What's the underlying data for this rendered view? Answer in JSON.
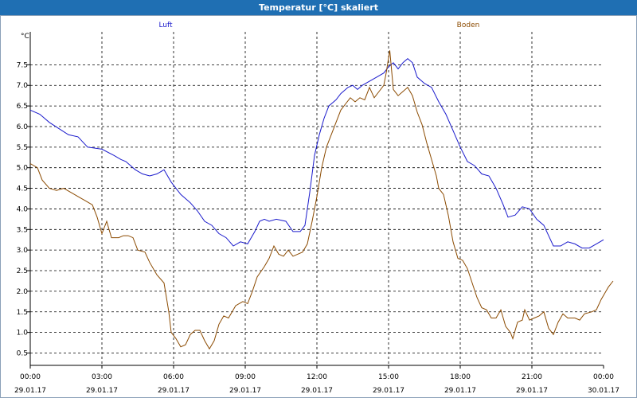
{
  "window": {
    "title": "Temperatur [°C] skaliert"
  },
  "colors": {
    "titlebar": "#1f6fb3",
    "luft": "#1a1acc",
    "boden": "#8b4a00",
    "grid": "#000000"
  },
  "chart_data": {
    "type": "line",
    "ylabel": "°C",
    "ylim": [
      0.2,
      8.3
    ],
    "xlim": [
      0,
      24
    ],
    "yticks": [
      "0.5",
      "1.0",
      "1.5",
      "2.0",
      "2.5",
      "3.0",
      "3.5",
      "4.0",
      "4.5",
      "5.0",
      "5.5",
      "6.0",
      "6.5",
      "7.0",
      "7.5"
    ],
    "xticks": [
      {
        "time": "00:00",
        "date": "29.01.17"
      },
      {
        "time": "03:00",
        "date": "29.01.17"
      },
      {
        "time": "06:00",
        "date": "29.01.17"
      },
      {
        "time": "09:00",
        "date": "29.01.17"
      },
      {
        "time": "12:00",
        "date": "29.01.17"
      },
      {
        "time": "15:00",
        "date": "29.01.17"
      },
      {
        "time": "18:00",
        "date": "29.01.17"
      },
      {
        "time": "21:00",
        "date": "29.01.17"
      },
      {
        "time": "00:00",
        "date": "30.01.17"
      }
    ],
    "series": [
      {
        "name": "Luft",
        "points": [
          [
            0,
            6.4
          ],
          [
            0.4,
            6.3
          ],
          [
            0.8,
            6.1
          ],
          [
            1.2,
            5.95
          ],
          [
            1.6,
            5.8
          ],
          [
            2.0,
            5.75
          ],
          [
            2.4,
            5.5
          ],
          [
            3.0,
            5.45
          ],
          [
            3.5,
            5.3
          ],
          [
            3.8,
            5.2
          ],
          [
            4.0,
            5.15
          ],
          [
            4.4,
            4.95
          ],
          [
            4.7,
            4.85
          ],
          [
            5.0,
            4.8
          ],
          [
            5.3,
            4.85
          ],
          [
            5.6,
            4.95
          ],
          [
            5.9,
            4.65
          ],
          [
            6.3,
            4.35
          ],
          [
            6.7,
            4.15
          ],
          [
            7.0,
            3.95
          ],
          [
            7.3,
            3.7
          ],
          [
            7.6,
            3.6
          ],
          [
            7.9,
            3.4
          ],
          [
            8.2,
            3.3
          ],
          [
            8.5,
            3.1
          ],
          [
            8.8,
            3.2
          ],
          [
            9.1,
            3.15
          ],
          [
            9.4,
            3.45
          ],
          [
            9.6,
            3.7
          ],
          [
            9.8,
            3.75
          ],
          [
            10.0,
            3.7
          ],
          [
            10.3,
            3.75
          ],
          [
            10.7,
            3.7
          ],
          [
            11.0,
            3.45
          ],
          [
            11.3,
            3.45
          ],
          [
            11.5,
            3.6
          ],
          [
            11.7,
            4.4
          ],
          [
            11.9,
            5.3
          ],
          [
            12.1,
            5.8
          ],
          [
            12.3,
            6.2
          ],
          [
            12.5,
            6.5
          ],
          [
            12.8,
            6.65
          ],
          [
            13.0,
            6.8
          ],
          [
            13.3,
            6.95
          ],
          [
            13.5,
            7.0
          ],
          [
            13.7,
            6.9
          ],
          [
            13.9,
            7.0
          ],
          [
            14.2,
            7.1
          ],
          [
            14.5,
            7.2
          ],
          [
            14.8,
            7.3
          ],
          [
            15.0,
            7.45
          ],
          [
            15.2,
            7.55
          ],
          [
            15.4,
            7.4
          ],
          [
            15.6,
            7.55
          ],
          [
            15.8,
            7.65
          ],
          [
            16.0,
            7.55
          ],
          [
            16.2,
            7.2
          ],
          [
            16.5,
            7.05
          ],
          [
            16.8,
            6.95
          ],
          [
            17.1,
            6.6
          ],
          [
            17.4,
            6.3
          ],
          [
            17.7,
            5.9
          ],
          [
            18.0,
            5.5
          ],
          [
            18.3,
            5.15
          ],
          [
            18.6,
            5.05
          ],
          [
            18.9,
            4.85
          ],
          [
            19.2,
            4.8
          ],
          [
            19.5,
            4.5
          ],
          [
            19.8,
            4.1
          ],
          [
            20.0,
            3.8
          ],
          [
            20.3,
            3.85
          ],
          [
            20.6,
            4.05
          ],
          [
            20.9,
            4.0
          ],
          [
            21.2,
            3.75
          ],
          [
            21.5,
            3.6
          ],
          [
            21.7,
            3.35
          ],
          [
            21.9,
            3.1
          ],
          [
            22.2,
            3.1
          ],
          [
            22.5,
            3.2
          ],
          [
            22.8,
            3.15
          ],
          [
            23.1,
            3.05
          ],
          [
            23.4,
            3.05
          ],
          [
            23.7,
            3.15
          ],
          [
            24.0,
            3.25
          ]
        ]
      },
      {
        "name": "Boden",
        "points": [
          [
            0,
            5.1
          ],
          [
            0.3,
            5.0
          ],
          [
            0.5,
            4.7
          ],
          [
            0.8,
            4.5
          ],
          [
            1.1,
            4.45
          ],
          [
            1.4,
            4.5
          ],
          [
            1.7,
            4.4
          ],
          [
            2.0,
            4.3
          ],
          [
            2.3,
            4.2
          ],
          [
            2.6,
            4.1
          ],
          [
            2.8,
            3.8
          ],
          [
            3.0,
            3.4
          ],
          [
            3.2,
            3.7
          ],
          [
            3.4,
            3.3
          ],
          [
            3.7,
            3.3
          ],
          [
            3.9,
            3.35
          ],
          [
            4.1,
            3.35
          ],
          [
            4.3,
            3.3
          ],
          [
            4.5,
            3.0
          ],
          [
            4.8,
            2.95
          ],
          [
            5.0,
            2.7
          ],
          [
            5.3,
            2.4
          ],
          [
            5.6,
            2.2
          ],
          [
            5.8,
            1.5
          ],
          [
            5.9,
            1.0
          ],
          [
            6.1,
            0.85
          ],
          [
            6.3,
            0.65
          ],
          [
            6.5,
            0.7
          ],
          [
            6.7,
            0.95
          ],
          [
            6.9,
            1.05
          ],
          [
            7.1,
            1.05
          ],
          [
            7.3,
            0.8
          ],
          [
            7.5,
            0.6
          ],
          [
            7.7,
            0.8
          ],
          [
            7.9,
            1.2
          ],
          [
            8.1,
            1.4
          ],
          [
            8.3,
            1.35
          ],
          [
            8.6,
            1.65
          ],
          [
            8.9,
            1.75
          ],
          [
            9.1,
            1.7
          ],
          [
            9.3,
            2.0
          ],
          [
            9.5,
            2.35
          ],
          [
            9.8,
            2.6
          ],
          [
            10.0,
            2.8
          ],
          [
            10.2,
            3.1
          ],
          [
            10.4,
            2.9
          ],
          [
            10.6,
            2.85
          ],
          [
            10.8,
            3.0
          ],
          [
            11.0,
            2.85
          ],
          [
            11.2,
            2.9
          ],
          [
            11.4,
            2.95
          ],
          [
            11.6,
            3.15
          ],
          [
            11.8,
            3.7
          ],
          [
            12.0,
            4.3
          ],
          [
            12.2,
            5.0
          ],
          [
            12.4,
            5.5
          ],
          [
            12.6,
            5.8
          ],
          [
            12.8,
            6.1
          ],
          [
            13.0,
            6.4
          ],
          [
            13.2,
            6.55
          ],
          [
            13.4,
            6.7
          ],
          [
            13.6,
            6.6
          ],
          [
            13.8,
            6.7
          ],
          [
            14.0,
            6.65
          ],
          [
            14.2,
            6.95
          ],
          [
            14.4,
            6.7
          ],
          [
            14.6,
            6.85
          ],
          [
            14.8,
            7.0
          ],
          [
            14.9,
            7.3
          ],
          [
            15.05,
            7.85
          ],
          [
            15.2,
            6.9
          ],
          [
            15.4,
            6.75
          ],
          [
            15.6,
            6.85
          ],
          [
            15.8,
            6.95
          ],
          [
            16.0,
            6.75
          ],
          [
            16.2,
            6.35
          ],
          [
            16.4,
            6.05
          ],
          [
            16.6,
            5.6
          ],
          [
            16.8,
            5.2
          ],
          [
            17.0,
            4.8
          ],
          [
            17.1,
            4.5
          ],
          [
            17.3,
            4.35
          ],
          [
            17.5,
            3.85
          ],
          [
            17.7,
            3.2
          ],
          [
            17.9,
            2.8
          ],
          [
            18.1,
            2.75
          ],
          [
            18.3,
            2.55
          ],
          [
            18.5,
            2.2
          ],
          [
            18.7,
            1.85
          ],
          [
            18.9,
            1.6
          ],
          [
            19.1,
            1.55
          ],
          [
            19.3,
            1.35
          ],
          [
            19.5,
            1.35
          ],
          [
            19.7,
            1.55
          ],
          [
            19.9,
            1.15
          ],
          [
            20.1,
            1.0
          ],
          [
            20.2,
            0.85
          ],
          [
            20.4,
            1.25
          ],
          [
            20.6,
            1.3
          ],
          [
            20.7,
            1.55
          ],
          [
            20.9,
            1.3
          ],
          [
            21.1,
            1.35
          ],
          [
            21.3,
            1.4
          ],
          [
            21.5,
            1.5
          ],
          [
            21.7,
            1.1
          ],
          [
            21.9,
            0.95
          ],
          [
            22.1,
            1.25
          ],
          [
            22.3,
            1.45
          ],
          [
            22.5,
            1.35
          ],
          [
            22.8,
            1.35
          ],
          [
            23.0,
            1.3
          ],
          [
            23.2,
            1.45
          ],
          [
            23.5,
            1.5
          ],
          [
            23.7,
            1.55
          ],
          [
            23.9,
            1.8
          ],
          [
            24.2,
            2.1
          ],
          [
            24.4,
            2.25
          ]
        ]
      }
    ]
  }
}
